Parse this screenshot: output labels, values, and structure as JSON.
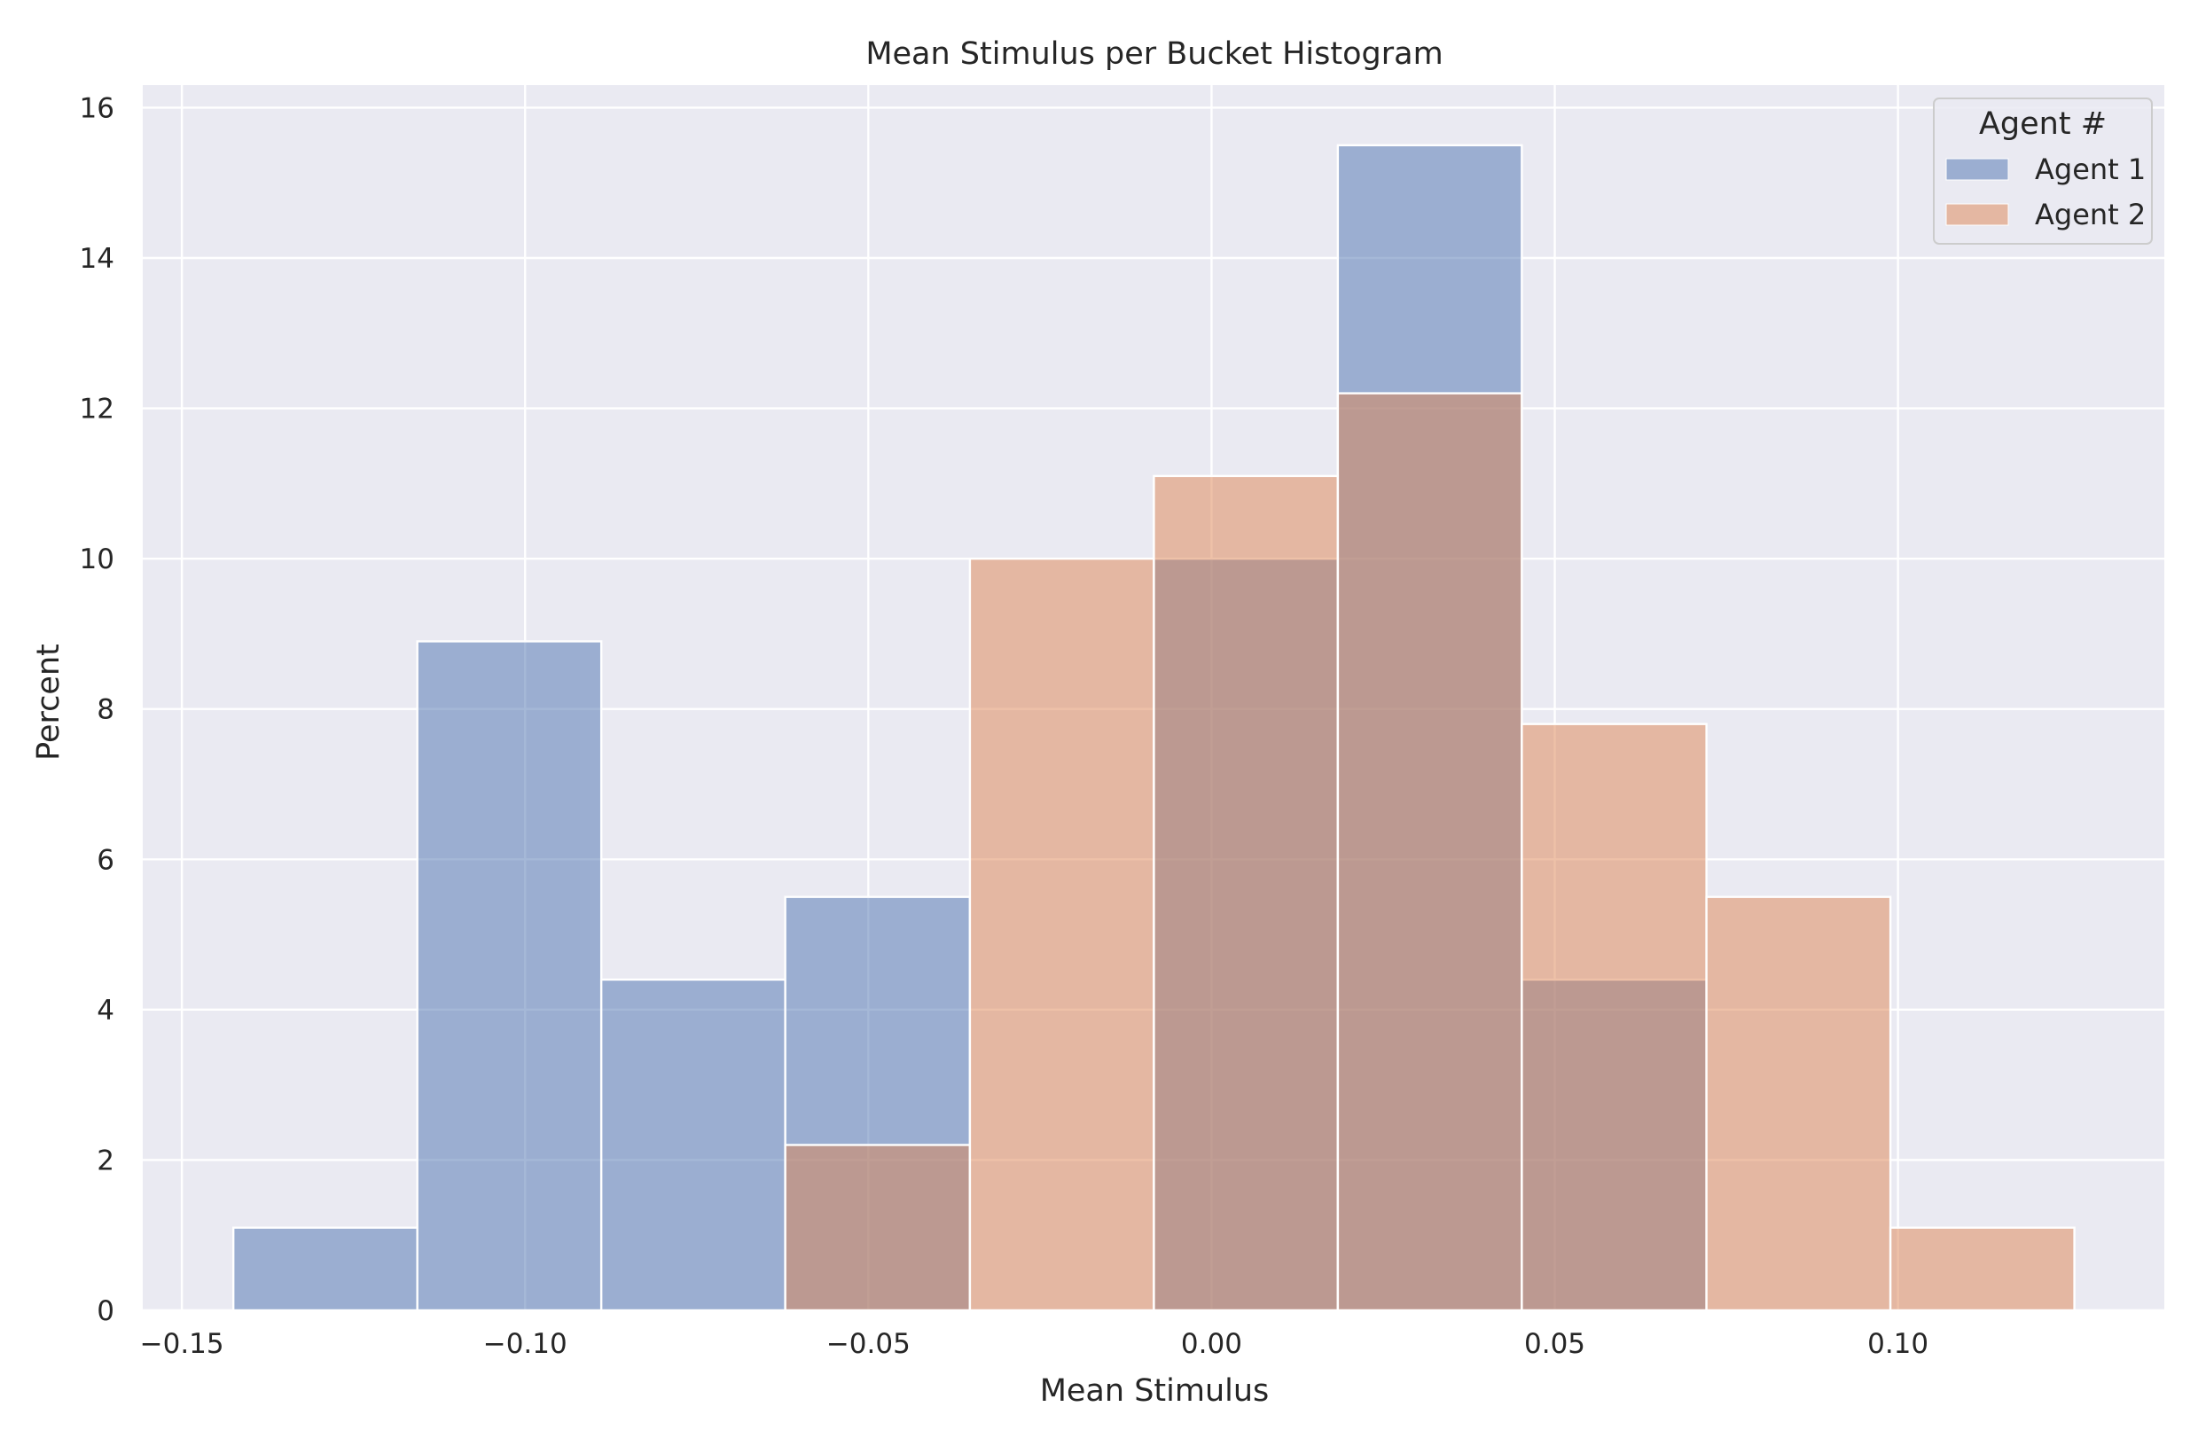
{
  "chart_data": {
    "type": "bar",
    "title": "Mean Stimulus per Bucket Histogram",
    "xlabel": "Mean Stimulus",
    "ylabel": "Percent",
    "xlim": [
      -0.1557,
      0.1388
    ],
    "ylim": [
      0,
      16.3
    ],
    "xticks": [
      -0.15,
      -0.1,
      -0.05,
      0.0,
      0.05,
      0.1
    ],
    "xtick_labels": [
      "−0.15",
      "−0.10",
      "−0.05",
      "0.00",
      "0.05",
      "0.10"
    ],
    "yticks": [
      0,
      2,
      4,
      6,
      8,
      10,
      12,
      14,
      16
    ],
    "ytick_labels": [
      "0",
      "2",
      "4",
      "6",
      "8",
      "10",
      "12",
      "14",
      "16"
    ],
    "grid": true,
    "legend_position": "top-right",
    "legend_title": "Agent #",
    "bin_edges": [
      -0.1425,
      -0.1157,
      -0.0889,
      -0.0621,
      -0.0352,
      -0.0084,
      0.0184,
      0.0452,
      0.0721,
      0.0989,
      0.1257
    ],
    "series": [
      {
        "name": "Agent 1",
        "color": "#4c72b0",
        "values": [
          1.1,
          8.9,
          4.4,
          5.5,
          0,
          10.0,
          15.5,
          4.4,
          0,
          0
        ]
      },
      {
        "name": "Agent 2",
        "color": "#dd8452",
        "values": [
          0,
          0,
          0,
          2.2,
          10.0,
          11.1,
          12.2,
          7.8,
          5.5,
          1.1
        ]
      }
    ]
  },
  "colors": {
    "plot_background": "#eaeaf2",
    "grid": "#ffffff",
    "text": "#262626"
  }
}
